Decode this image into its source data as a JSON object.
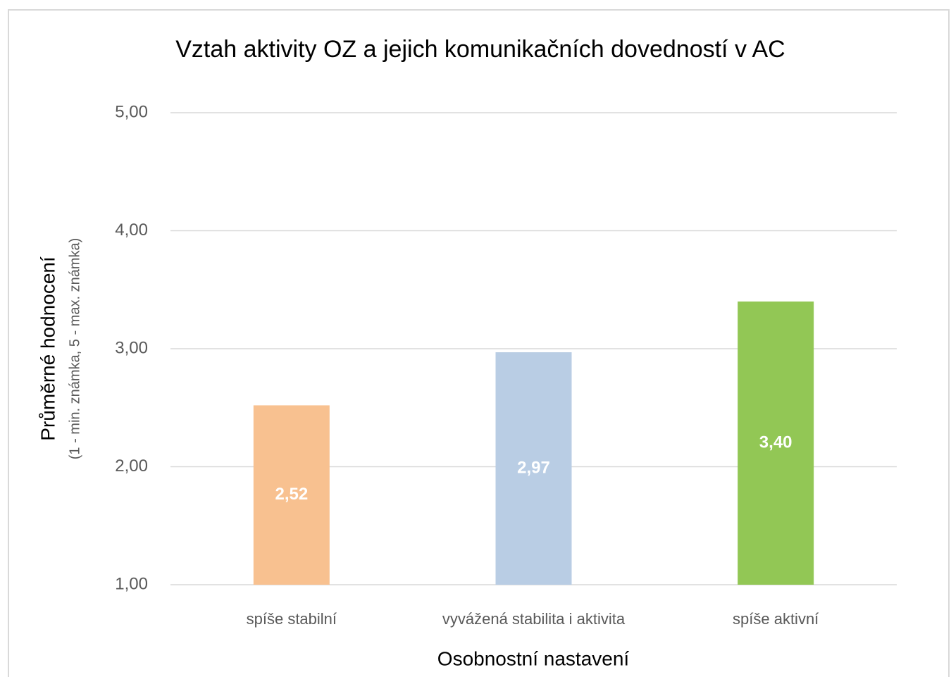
{
  "chart_data": {
    "type": "bar",
    "title": "Vztah aktivity OZ a jejich komunikačních dovedností  v AC",
    "ylabel": "Průměrné hodnocení",
    "ylabel_note": "(1 - min. známka, 5 - max. známka)",
    "xlabel": "Osobnostní nastavení",
    "categories": [
      "spíše stabilní",
      "vyvážená stabilita i aktivita",
      "spíše aktivní"
    ],
    "values": [
      2.52,
      2.97,
      3.4
    ],
    "value_labels": [
      "2,52",
      "2,97",
      "3,40"
    ],
    "colors": [
      "#f8c190",
      "#b9cde4",
      "#92c755"
    ],
    "ylim": [
      1,
      5
    ],
    "yticks": [
      {
        "value": 1,
        "label": "1,00"
      },
      {
        "value": 2,
        "label": "2,00"
      },
      {
        "value": 3,
        "label": "3,00"
      },
      {
        "value": 4,
        "label": "4,00"
      },
      {
        "value": 5,
        "label": "5,00"
      }
    ],
    "grid": true
  }
}
